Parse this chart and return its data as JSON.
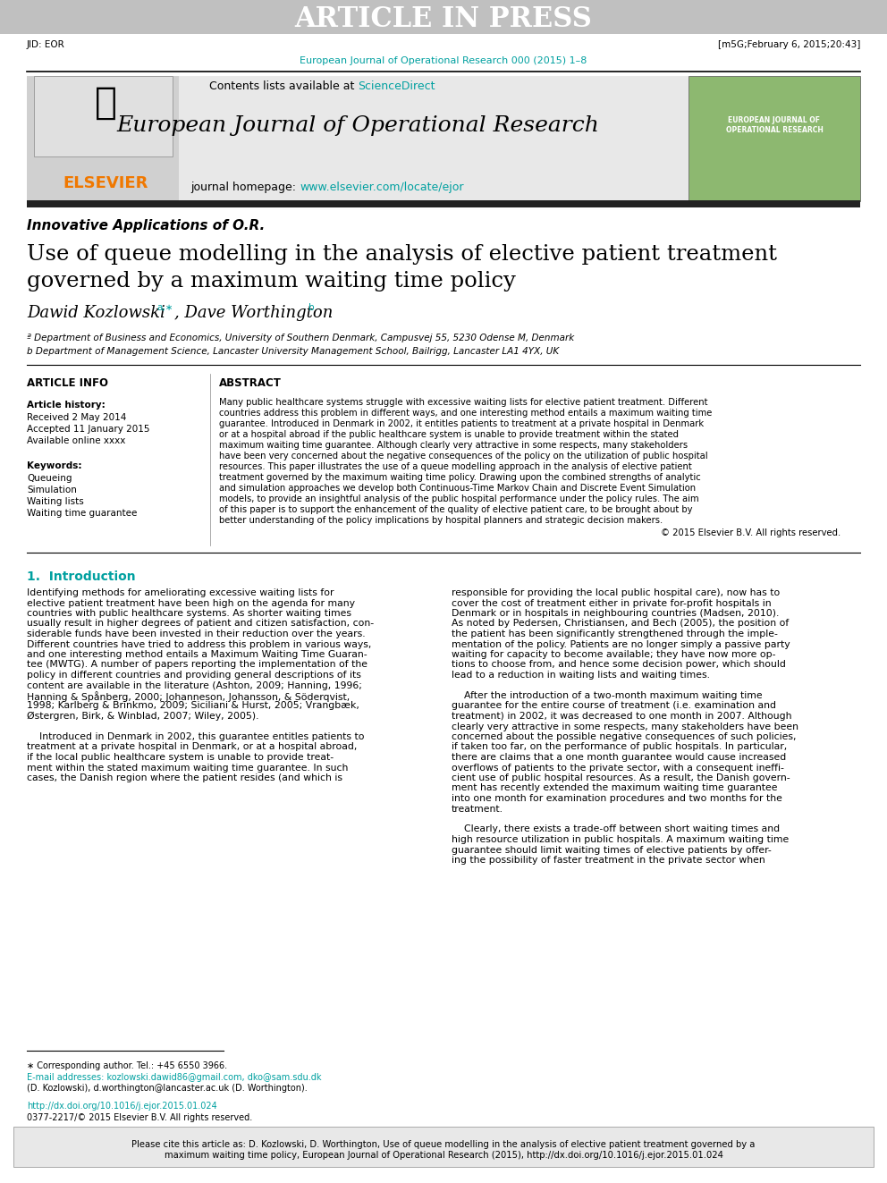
{
  "article_in_press_text": "ARTICLE IN PRESS",
  "article_in_press_bg": "#c0c0c0",
  "jid_text": "JID: EOR",
  "date_text": "[m5G;February 6, 2015;20:43]",
  "journal_url_text": "European Journal of Operational Research 000 (2015) 1–8",
  "journal_url_color": "#00a0a0",
  "header_bg": "#e8e8e8",
  "contents_text": "Contents lists available at ",
  "sciencedirect_text": "ScienceDirect",
  "sciencedirect_color": "#00a0a0",
  "journal_title": "European Journal of Operational Research",
  "journal_homepage_text": "journal homepage: ",
  "journal_homepage_url": "www.elsevier.com/locate/ejor",
  "journal_homepage_url_color": "#00a0a0",
  "elsevier_color": "#f07800",
  "section_label": "Innovative Applications of O.R.",
  "paper_title_line1": "Use of queue modelling in the analysis of elective patient treatment",
  "paper_title_line2": "governed by a maximum waiting time policy",
  "authors_text": "Dawid Kozlowski",
  "authors_super_a": "a,∗",
  "authors_comma": ", Dave Worthington",
  "authors_super_b": "b",
  "affil_a": "ª Department of Business and Economics, University of Southern Denmark, Campusvej 55, 5230 Odense M, Denmark",
  "affil_b": "b Department of Management Science, Lancaster University Management School, Bailrigg, Lancaster LA1 4YX, UK",
  "article_info_title": "ARTICLE INFO",
  "abstract_title": "ABSTRACT",
  "article_history_label": "Article history:",
  "received_text": "Received 2 May 2014",
  "accepted_text": "Accepted 11 January 2015",
  "available_text": "Available online xxxx",
  "keywords_label": "Keywords:",
  "keyword1": "Queueing",
  "keyword2": "Simulation",
  "keyword3": "Waiting lists",
  "keyword4": "Waiting time guarantee",
  "abstract_text": "Many public healthcare systems struggle with excessive waiting lists for elective patient treatment. Different countries address this problem in different ways, and one interesting method entails a maximum waiting time guarantee. Introduced in Denmark in 2002, it entitles patients to treatment at a private hospital in Denmark or at a hospital abroad if the public healthcare system is unable to provide treatment within the stated maximum waiting time guarantee. Although clearly very attractive in some respects, many stakeholders have been very concerned about the negative consequences of the policy on the utilization of public hospital resources. This paper illustrates the use of a queue modelling approach in the analysis of elective patient treatment governed by the maximum waiting time policy. Drawing upon the combined strengths of analytic and simulation approaches we develop both Continuous-Time Markov Chain and Discrete Event Simulation models, to provide an insightful analysis of the public hospital performance under the policy rules. The aim of this paper is to support the enhancement of the quality of elective patient care, to be brought about by better understanding of the policy implications by hospital planners and strategic decision makers.",
  "copyright_text": "© 2015 Elsevier B.V. All rights reserved.",
  "intro_title": "1.  Introduction",
  "intro_col1": "Identifying methods for ameliorating excessive waiting lists for elective patient treatment have been high on the agenda for many countries with public healthcare systems. As shorter waiting times usually result in higher degrees of patient and citizen satisfaction, considerable funds have been invested in their reduction over the years. Different countries have tried to address this problem in various ways, and one interesting method entails a Maximum Waiting Time Guarantee (MWTG). A number of papers reporting the implementation of the policy in different countries and providing general descriptions of its content are available in the literature (Ashton, 2009; Hanning, 1996; Hanning & Spånberg, 2000; Johanneson, Johansson, & Söderqvist, 1998; Karlberg & Brinkmo, 2009; Siciliani & Hurst, 2005; Vrangbæk, Østergren, Birk, & Winblad, 2007; Wiley, 2005).\n\n    Introduced in Denmark in 2002, this guarantee entitles patients to treatment at a private hospital in Denmark, or at a hospital abroad, if the local public healthcare system is unable to provide treatment within the stated maximum waiting time guarantee. In such cases, the Danish region where the patient resides (and which is",
  "intro_col2": "responsible for providing the local public hospital care), now has to cover the cost of treatment either in private for-profit hospitals in Denmark or in hospitals in neighbouring countries (Madsen, 2010). As noted by Pedersen, Christiansen, and Bech (2005), the position of the patient has been significantly strengthened through the implementation of the policy. Patients are no longer simply a passive party waiting for capacity to become available; they have now more options to choose from, and hence some decision power, which should lead to a reduction in waiting lists and waiting times.\n\n    After the introduction of a two-month maximum waiting time guarantee for the entire course of treatment (i.e. examination and treatment) in 2002, it was decreased to one month in 2007. Although clearly very attractive in some respects, many stakeholders have been concerned about the possible negative consequences of such policies, if taken too far, on the performance of public hospitals. In particular, there are claims that a one month guarantee would cause increased overflows of patients to the private sector, with a consequent inefficient use of public hospital resources. As a result, the Danish government has recently extended the maximum waiting time guarantee into one month for examination procedures and two months for the treatment.\n\n    Clearly, there exists a trade-off between short waiting times and high resource utilization in public hospitals. A maximum waiting time guarantee should limit waiting times of elective patients by offering the possibility of faster treatment in the private sector when",
  "footnote_star": "∗ Corresponding author. Tel.: +45 6550 3966.",
  "footnote_email_label": "E-mail addresses:",
  "footnote_email1": "kozlowski.dawid86@gmail.com",
  "footnote_email2": "dko@sam.sdu.dk",
  "footnote_email3": "(D. Kozlowski),",
  "footnote_email4": "d.worthington@lancaster.ac.uk",
  "footnote_email5": "(D. Worthington).",
  "doi_text": "http://dx.doi.org/10.1016/j.ejor.2015.01.024",
  "issn_text": "0377-2217/© 2015 Elsevier B.V. All rights reserved.",
  "cite_box_text": "Please cite this article as: D. Kozlowski, D. Worthington, Use of queue modelling in the analysis of elective patient treatment governed by a maximum waiting time policy, European Journal of Operational Research (2015), http://dx.doi.org/10.1016/j.ejor.2015.01.024",
  "cite_box_bg": "#e8e8e8",
  "bg_color": "#ffffff",
  "text_color": "#000000",
  "link_color": "#00a0a0"
}
